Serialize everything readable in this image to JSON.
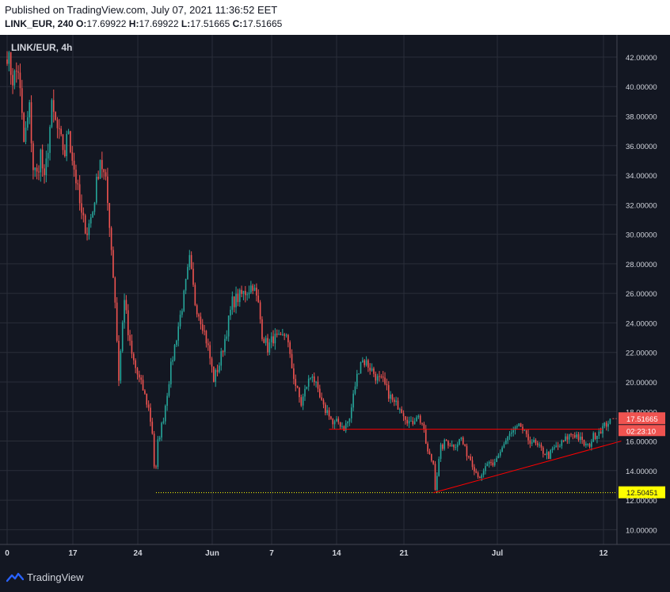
{
  "header": {
    "published": "Published on TradingView.com, July 07, 2021 11:36:52 EET",
    "symbol_interval": "LINK_EUR, 240",
    "o_label": "O:",
    "o_value": "17.69922",
    "h_label": "H:",
    "h_value": "17.69922",
    "l_label": "L:",
    "l_value": "17.51665",
    "c_label": "C:",
    "c_value": "17.51665"
  },
  "footer": {
    "brand": "TradingView"
  },
  "colors": {
    "background": "#131722",
    "grid": "#2a2e39",
    "axis_text": "#d1d4dc",
    "up": "#26a69a",
    "down": "#ef5350",
    "last_price_bg": "#ef5350",
    "support_label_bg": "#ffff00",
    "support_line": "#ffff00",
    "trendline": "#ff0000"
  },
  "chart_data": {
    "type": "candlestick",
    "title": "LINK/EUR, 4h",
    "ylim": [
      9,
      43.5
    ],
    "y_ticks": [
      "10.00000",
      "12.00000",
      "14.00000",
      "16.00000",
      "18.00000",
      "20.00000",
      "22.00000",
      "24.00000",
      "26.00000",
      "28.00000",
      "30.00000",
      "32.00000",
      "34.00000",
      "36.00000",
      "38.00000",
      "40.00000",
      "42.00000"
    ],
    "x_ticks": [
      "0",
      "17",
      "24",
      "Jun",
      "7",
      "14",
      "21",
      "Jul",
      "12"
    ],
    "price_path": [
      [
        0,
        42.3
      ],
      [
        3,
        40.5
      ],
      [
        6,
        41.2
      ],
      [
        9,
        36.2
      ],
      [
        12,
        38.5
      ],
      [
        14,
        34.5
      ],
      [
        16,
        34.0
      ],
      [
        18,
        35.5
      ],
      [
        20,
        33.5
      ],
      [
        24,
        38.5
      ],
      [
        28,
        36.6
      ],
      [
        31,
        35.5
      ],
      [
        33,
        37.2
      ],
      [
        34,
        36.0
      ],
      [
        37,
        33.7
      ],
      [
        40,
        31.2
      ],
      [
        43,
        30.2
      ],
      [
        46,
        31.6
      ],
      [
        50,
        35.2
      ],
      [
        53,
        33.4
      ],
      [
        55,
        30.8
      ],
      [
        58,
        25.5
      ],
      [
        60,
        20.2
      ],
      [
        63,
        25.8
      ],
      [
        65,
        23.2
      ],
      [
        67,
        21.8
      ],
      [
        70,
        20.5
      ],
      [
        73,
        19.5
      ],
      [
        76,
        18.2
      ],
      [
        78,
        16.6
      ],
      [
        79.5,
        13.2
      ],
      [
        81,
        15.9
      ],
      [
        84,
        17.6
      ],
      [
        88,
        21.0
      ],
      [
        92,
        23.8
      ],
      [
        95,
        25.8
      ],
      [
        98,
        28.2
      ],
      [
        101,
        25.4
      ],
      [
        105,
        23.9
      ],
      [
        108,
        22.3
      ],
      [
        111,
        20.2
      ],
      [
        114,
        21.2
      ],
      [
        118,
        23.5
      ],
      [
        121,
        25.4
      ],
      [
        125,
        25.8
      ],
      [
        129,
        26.2
      ],
      [
        132,
        26.6
      ],
      [
        135,
        25.2
      ],
      [
        137,
        23.3
      ],
      [
        140,
        22.3
      ],
      [
        143,
        23.0
      ],
      [
        147,
        22.8
      ],
      [
        150,
        23.4
      ],
      [
        152,
        21.6
      ],
      [
        155,
        19.8
      ],
      [
        158,
        18.5
      ],
      [
        161,
        19.8
      ],
      [
        164,
        20.6
      ],
      [
        167,
        19.2
      ],
      [
        170,
        18.2
      ],
      [
        173,
        17.9
      ],
      [
        175,
        17.1
      ],
      [
        178,
        17.3
      ],
      [
        181,
        16.9
      ],
      [
        184,
        17.5
      ],
      [
        187,
        19.8
      ],
      [
        190,
        21.5
      ],
      [
        193,
        21.3
      ],
      [
        196,
        20.8
      ],
      [
        199,
        20.2
      ],
      [
        202,
        20.0
      ],
      [
        205,
        19.2
      ],
      [
        208,
        18.5
      ],
      [
        211,
        18.4
      ],
      [
        214,
        17.7
      ],
      [
        217,
        17.1
      ],
      [
        220,
        17.8
      ],
      [
        223,
        17.2
      ],
      [
        226,
        15.2
      ],
      [
        229,
        14.5
      ],
      [
        230,
        12.9
      ],
      [
        233,
        15.5
      ],
      [
        236,
        16.0
      ],
      [
        239,
        15.7
      ],
      [
        242,
        15.9
      ],
      [
        244,
        16.2
      ],
      [
        246,
        15.4
      ],
      [
        249,
        14.8
      ],
      [
        252,
        13.9
      ],
      [
        255,
        13.5
      ],
      [
        258,
        14.5
      ],
      [
        261,
        14.2
      ],
      [
        264,
        15.1
      ],
      [
        267,
        15.8
      ],
      [
        270,
        16.4
      ],
      [
        273,
        16.7
      ],
      [
        276,
        17.0
      ],
      [
        279,
        16.2
      ],
      [
        282,
        16.0
      ],
      [
        285,
        15.6
      ],
      [
        288,
        15.3
      ],
      [
        291,
        15.0
      ],
      [
        294,
        15.5
      ],
      [
        297,
        15.7
      ],
      [
        300,
        16.1
      ],
      [
        303,
        16.5
      ],
      [
        306,
        16.4
      ],
      [
        309,
        15.9
      ],
      [
        312,
        15.6
      ],
      [
        315,
        16.3
      ],
      [
        318,
        16.7
      ],
      [
        321,
        17.0
      ],
      [
        324,
        17.52
      ]
    ],
    "last_price": "17.51665",
    "countdown": "02:23:10",
    "support_level": 12.50451,
    "support_label": "12.50451",
    "support_from_bar": 80,
    "resistance_level": 16.8,
    "resistance_bars": [
      173,
      320
    ],
    "ascending_trendline": {
      "from": [
        229,
        12.5
      ],
      "to": [
        330,
        16.0
      ]
    }
  }
}
